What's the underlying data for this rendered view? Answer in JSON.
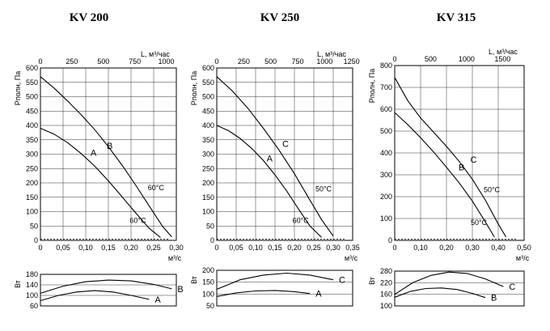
{
  "chart_data": [
    {
      "type": "line",
      "title": "KV 200",
      "main": {
        "xlabel": "м³/с",
        "x2label": "L, м³/час",
        "ylabel": "Рполн, Па",
        "xlim": [
          0,
          0.3
        ],
        "x2lim": [
          0,
          1080
        ],
        "ylim": [
          0,
          600
        ],
        "xticks": [
          "0",
          "0,05",
          "0,10",
          "0,15",
          "0,20",
          "0,25",
          "0,30"
        ],
        "x2ticks": [
          "0",
          "250",
          "500",
          "750",
          "1000"
        ],
        "yticks": [
          "0",
          "50",
          "100",
          "150",
          "200",
          "250",
          "300",
          "350",
          "400",
          "450",
          "500",
          "550",
          "600"
        ],
        "grid": true,
        "series": [
          {
            "name": "A",
            "x": [
              0,
              0.03,
              0.06,
              0.09,
              0.12,
              0.15,
              0.18,
              0.21,
              0.24,
              0.265
            ],
            "y": [
              390,
              370,
              340,
              302,
              258,
              207,
              152,
              96,
              42,
              10
            ]
          },
          {
            "name": "B",
            "x": [
              0,
              0.03,
              0.06,
              0.09,
              0.12,
              0.15,
              0.18,
              0.21,
              0.24,
              0.27,
              0.29
            ],
            "y": [
              570,
              530,
              485,
              437,
              385,
              326,
              262,
              193,
              120,
              48,
              12
            ]
          }
        ],
        "annotations": [
          {
            "text": "A",
            "x": 0.117,
            "y": 295
          },
          {
            "text": "B",
            "x": 0.153,
            "y": 318
          },
          {
            "text": "60°C",
            "x": 0.255,
            "y": 175
          },
          {
            "text": "60°C",
            "x": 0.215,
            "y": 60
          }
        ]
      },
      "power": {
        "ylabel": "Вт",
        "yticks": [
          "60",
          "100",
          "140",
          "180"
        ],
        "ylim": [
          60,
          180
        ],
        "series": [
          {
            "name": "A",
            "x": [
              0,
              0.04,
              0.08,
              0.12,
              0.16,
              0.2,
              0.24
            ],
            "y": [
              80,
              100,
              113,
              118,
              113,
              100,
              85
            ]
          },
          {
            "name": "B",
            "x": [
              0,
              0.05,
              0.1,
              0.15,
              0.2,
              0.25,
              0.29
            ],
            "y": [
              108,
              135,
              152,
              158,
              155,
              142,
              125
            ]
          }
        ]
      }
    },
    {
      "type": "line",
      "title": "KV 250",
      "main": {
        "xlabel": "м³/с",
        "x2label": "L, м³/час",
        "ylabel": "Рполн, Па",
        "xlim": [
          0,
          0.35
        ],
        "x2lim": [
          0,
          1260
        ],
        "ylim": [
          0,
          600
        ],
        "xticks": [
          "0",
          "0,05",
          "0,10",
          "0,15",
          "0,20",
          "0,25",
          "0,30",
          "0,35"
        ],
        "x2ticks": [
          "0",
          "250",
          "500",
          "750",
          "1000",
          "1250"
        ],
        "yticks": [
          "0",
          "50",
          "100",
          "150",
          "200",
          "250",
          "300",
          "350",
          "400",
          "450",
          "500",
          "550",
          "600"
        ],
        "grid": true,
        "series": [
          {
            "name": "A",
            "x": [
              0,
              0.03,
              0.06,
              0.09,
              0.12,
              0.15,
              0.18,
              0.21,
              0.24,
              0.27
            ],
            "y": [
              400,
              382,
              355,
              320,
              278,
              228,
              172,
              110,
              50,
              10
            ]
          },
          {
            "name": "C",
            "x": [
              0,
              0.04,
              0.08,
              0.12,
              0.16,
              0.2,
              0.24,
              0.27,
              0.3
            ],
            "y": [
              570,
              520,
              460,
              390,
              315,
              232,
              140,
              72,
              15
            ]
          }
        ],
        "annotations": [
          {
            "text": "A",
            "x": 0.136,
            "y": 275
          },
          {
            "text": "C",
            "x": 0.177,
            "y": 325
          },
          {
            "text": "50°C",
            "x": 0.275,
            "y": 170
          },
          {
            "text": "60°C",
            "x": 0.216,
            "y": 60
          }
        ]
      },
      "power": {
        "ylabel": "Вт",
        "yticks": [
          "50",
          "100",
          "150",
          "200"
        ],
        "ylim": [
          50,
          200
        ],
        "series": [
          {
            "name": "A",
            "x": [
              0,
              0.05,
              0.1,
              0.15,
              0.2,
              0.24
            ],
            "y": [
              90,
              105,
              113,
              115,
              110,
              102
            ]
          },
          {
            "name": "C",
            "x": [
              0,
              0.06,
              0.12,
              0.18,
              0.24,
              0.3
            ],
            "y": [
              120,
              160,
              180,
              188,
              180,
              160
            ]
          }
        ]
      }
    },
    {
      "type": "line",
      "title": "KV 315",
      "main": {
        "xlabel": "м³/с",
        "x2label": "L, м³/час",
        "ylabel": "Рполн, Па",
        "xlim": [
          0,
          0.5
        ],
        "x2lim": [
          0,
          1800
        ],
        "ylim": [
          0,
          800
        ],
        "xticks": [
          "0",
          "0,10",
          "0,20",
          "0,30",
          "0,40",
          "0,50"
        ],
        "x2ticks": [
          "0",
          "500",
          "1000",
          "1500"
        ],
        "yticks": [
          "0",
          "100",
          "200",
          "300",
          "400",
          "500",
          "600",
          "700",
          "800"
        ],
        "grid": true,
        "series": [
          {
            "name": "B",
            "x": [
              0,
              0.05,
              0.1,
              0.15,
              0.2,
              0.25,
              0.3,
              0.35,
              0.385
            ],
            "y": [
              585,
              530,
              470,
              405,
              335,
              262,
              180,
              85,
              15
            ]
          },
          {
            "name": "C",
            "x": [
              0,
              0.05,
              0.1,
              0.15,
              0.2,
              0.25,
              0.3,
              0.35,
              0.4,
              0.43
            ],
            "y": [
              745,
              640,
              560,
              495,
              430,
              360,
              280,
              185,
              75,
              15
            ]
          }
        ],
        "annotations": [
          {
            "text": "B",
            "x": 0.258,
            "y": 320
          },
          {
            "text": "C",
            "x": 0.305,
            "y": 355
          },
          {
            "text": "50°C",
            "x": 0.375,
            "y": 220
          },
          {
            "text": "50°C",
            "x": 0.325,
            "y": 70
          }
        ]
      },
      "power": {
        "ylabel": "Вт",
        "yticks": [
          "100",
          "160",
          "220",
          "280"
        ],
        "ylim": [
          100,
          280
        ],
        "series": [
          {
            "name": "B",
            "x": [
              0,
              0.06,
              0.12,
              0.18,
              0.24,
              0.3,
              0.35
            ],
            "y": [
              145,
              175,
              190,
              193,
              185,
              165,
              143
            ]
          },
          {
            "name": "C",
            "x": [
              0,
              0.07,
              0.14,
              0.21,
              0.28,
              0.35,
              0.42
            ],
            "y": [
              160,
              220,
              258,
              275,
              268,
              240,
              200
            ]
          }
        ]
      }
    }
  ]
}
